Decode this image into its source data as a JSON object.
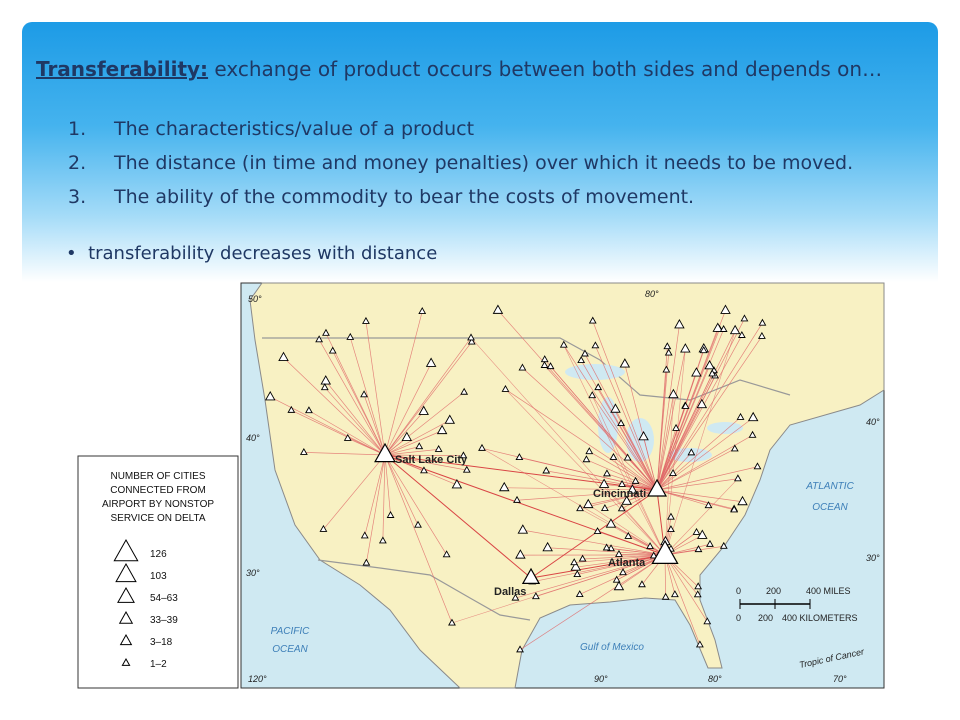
{
  "slide": {
    "heading": {
      "term": "Transferability:",
      "text": " exchange of product occurs between both sides and depends on…"
    },
    "list": [
      {
        "marker": "1.",
        "text": "The characteristics/value of a product"
      },
      {
        "marker": "2.",
        "text": "The distance (in time and money penalties) over which it needs to be moved."
      },
      {
        "marker": "3.",
        "text": "The ability of the commodity to bear the costs of movement."
      }
    ],
    "bullet": "transferability decreases with distance",
    "map": {
      "cities": {
        "slc": "Salt Lake City",
        "cincinnati": "Cincinnati",
        "atlanta": "Atlanta",
        "dallas": "Dallas"
      },
      "water": {
        "atlantic": [
          "ATLANTIC",
          "OCEAN"
        ],
        "pacific": [
          "PACIFIC",
          "OCEAN"
        ],
        "gulf": "Gulf of Mexico",
        "tropic": "Tropic of Cancer"
      },
      "graticule": {
        "lat50": "50°",
        "lat40": "40°",
        "lat30": "30°",
        "lon120": "120°",
        "lon90": "90°",
        "lon80": "80°",
        "lon70": "70°",
        "lon80top": "80°",
        "lat40r": "40°",
        "lat30r": "30°"
      },
      "scale": {
        "miles": [
          "0",
          "200",
          "400 MILES"
        ],
        "km": [
          "0",
          "200",
          "400 KILOMETERS"
        ]
      },
      "legend": {
        "title": [
          "NUMBER OF CITIES",
          "CONNECTED FROM",
          "AIRPORT BY NONSTOP",
          "SERVICE ON DELTA"
        ],
        "entries": [
          "126",
          "103",
          "54–63",
          "33–39",
          "3–18",
          "1–2"
        ]
      }
    }
  }
}
